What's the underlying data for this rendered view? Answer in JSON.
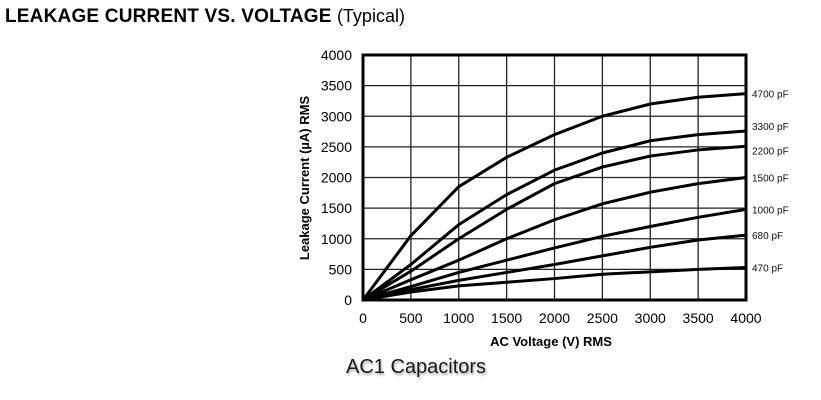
{
  "header": {
    "title_bold": "LEAKAGE CURRENT VS. VOLTAGE",
    "title_suffix": "(Typical)"
  },
  "caption": "AC1 Capacitors",
  "chart_data": {
    "type": "line",
    "title": "LEAKAGE CURRENT VS. VOLTAGE (Typical)",
    "xlabel": "AC Voltage (V) RMS",
    "ylabel": "Leakage Current (µA) RMS",
    "xlim": [
      0,
      4000
    ],
    "ylim": [
      0,
      4000
    ],
    "grid": true,
    "legend_position": "right, inline labels at line ends",
    "x_ticks": [
      0,
      500,
      1000,
      1500,
      2000,
      2500,
      3000,
      3500,
      4000
    ],
    "y_ticks": [
      0,
      500,
      1000,
      1500,
      2000,
      2500,
      3000,
      3500,
      4000
    ],
    "x": [
      0,
      500,
      1000,
      1500,
      2000,
      2500,
      3000,
      3500,
      4000
    ],
    "series": [
      {
        "name": "4700 pF",
        "values": [
          0,
          1050,
          1850,
          2330,
          2700,
          3000,
          3200,
          3310,
          3370
        ]
      },
      {
        "name": "3300 pF",
        "values": [
          0,
          580,
          1230,
          1720,
          2120,
          2400,
          2600,
          2700,
          2760
        ]
      },
      {
        "name": "2200 pF",
        "values": [
          0,
          470,
          1000,
          1480,
          1900,
          2170,
          2350,
          2450,
          2510
        ]
      },
      {
        "name": "1500 pF",
        "values": [
          0,
          330,
          650,
          1000,
          1310,
          1570,
          1760,
          1900,
          2000
        ]
      },
      {
        "name": "1000 pF",
        "values": [
          0,
          220,
          450,
          650,
          850,
          1040,
          1200,
          1350,
          1480
        ]
      },
      {
        "name": "680 pF",
        "values": [
          0,
          170,
          320,
          450,
          580,
          720,
          860,
          980,
          1060
        ]
      },
      {
        "name": "470 pF",
        "values": [
          0,
          130,
          230,
          290,
          350,
          420,
          460,
          500,
          530
        ]
      }
    ],
    "label_offsets": {
      "3300 pF": -5,
      "2200 pF": 4
    }
  },
  "colors": {
    "line": "#000000",
    "grid": "#222222",
    "background": "#ffffff"
  }
}
